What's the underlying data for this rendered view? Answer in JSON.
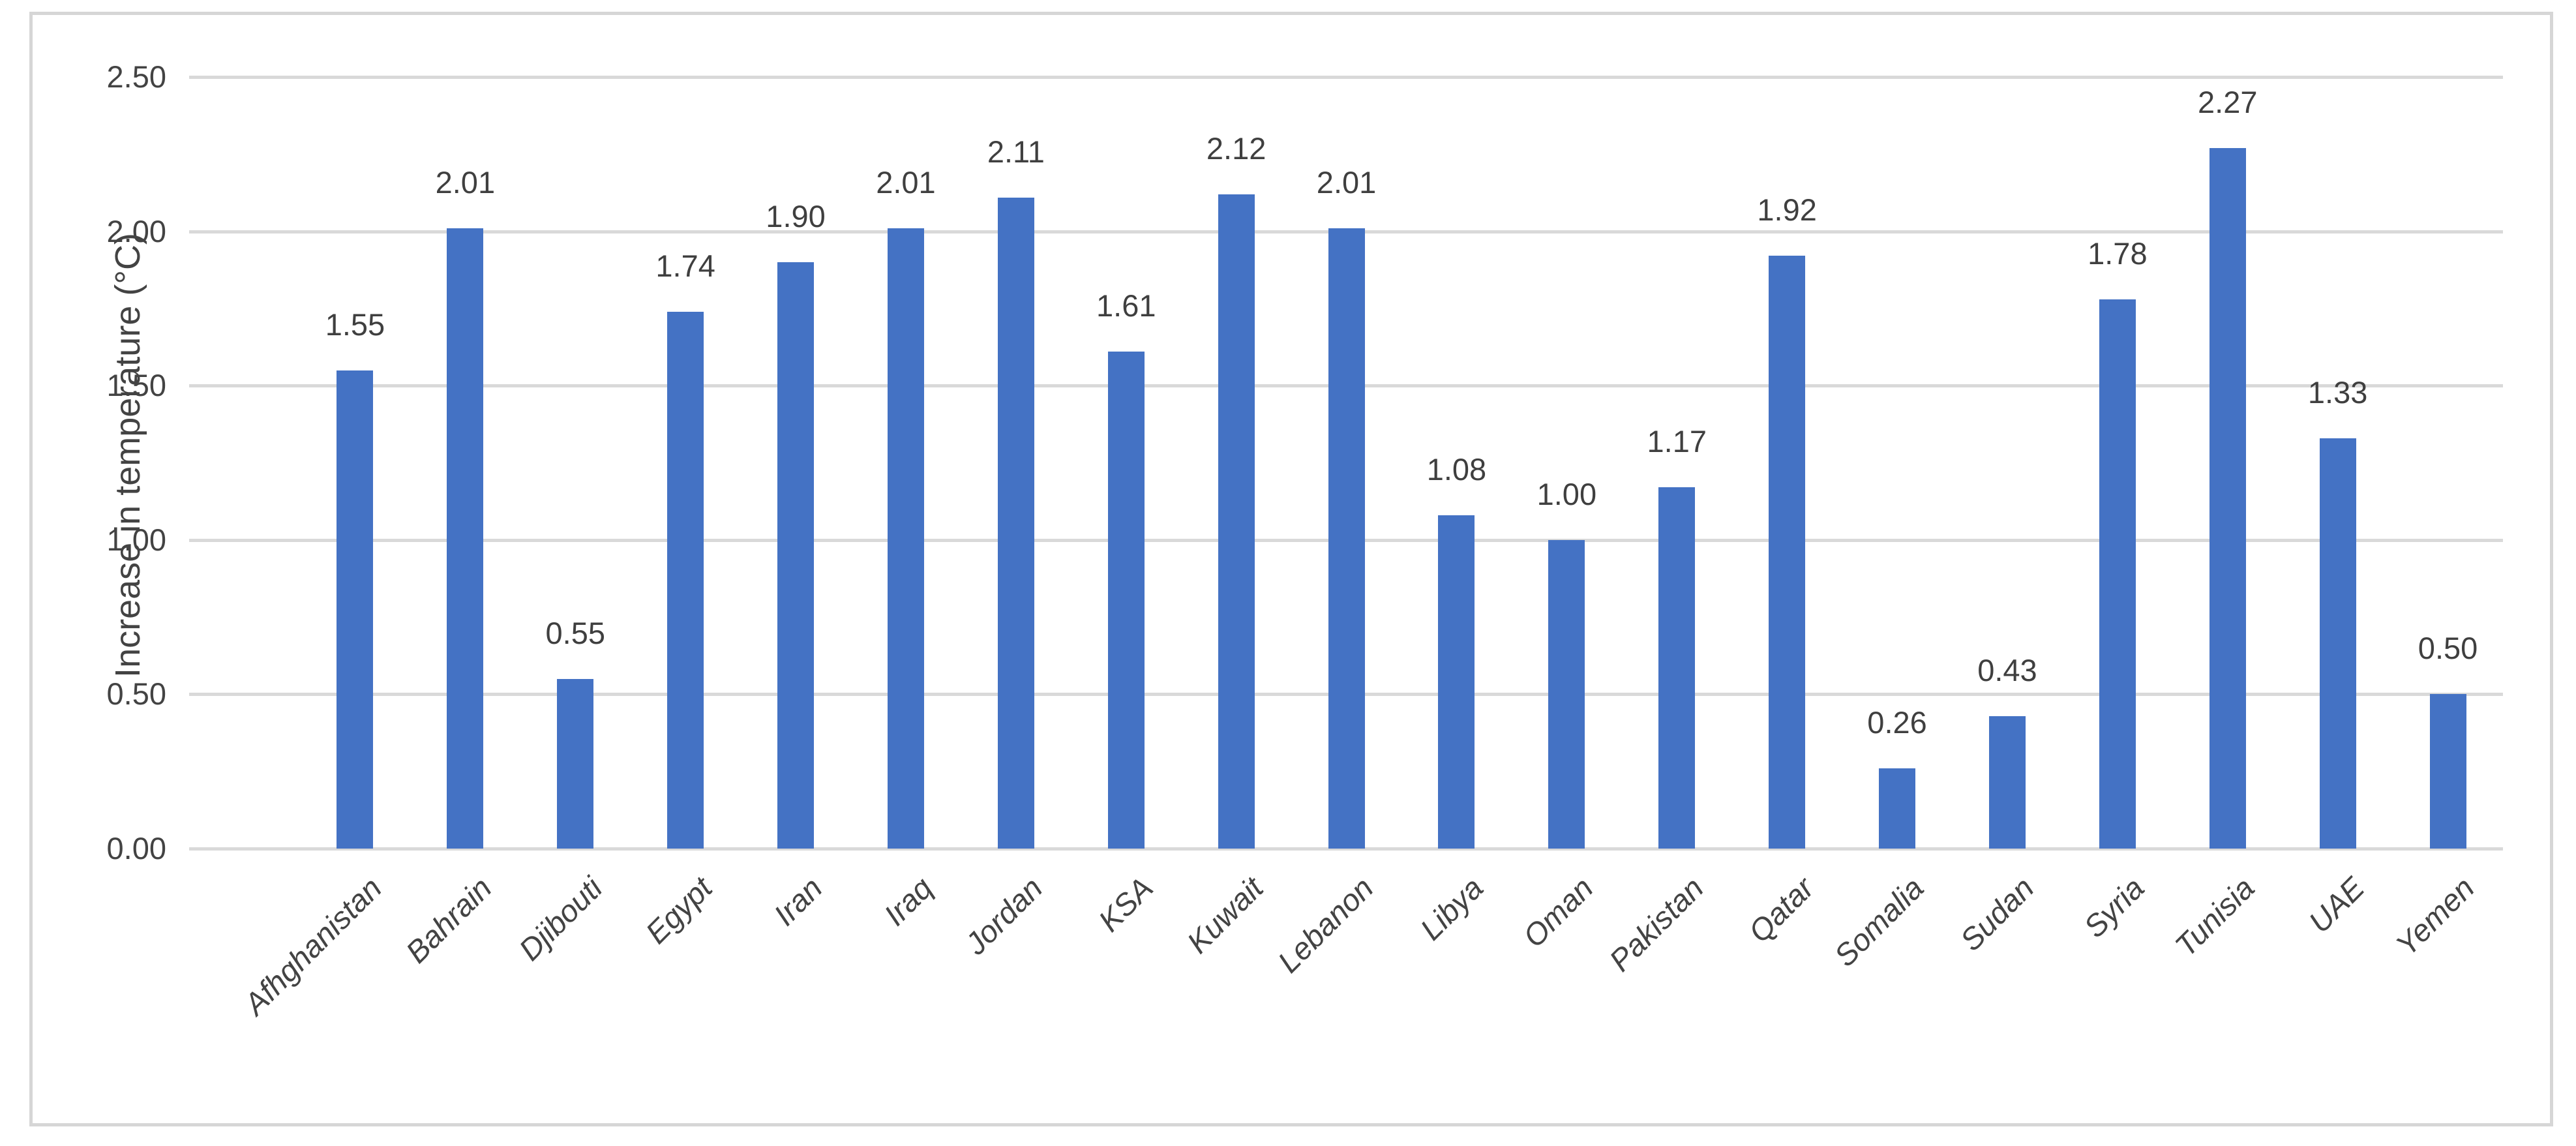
{
  "chart_data": {
    "type": "bar",
    "title": "",
    "ylabel": "Increase in temperature (°C)",
    "xlabel": "",
    "ylim": [
      0,
      2.5
    ],
    "ytick_interval": 0.5,
    "yticks": [
      "2.50",
      "2.00",
      "1.50",
      "1.00",
      "0.50",
      "0.00"
    ],
    "grid": "horizontal",
    "legend": "none",
    "categories": [
      "Afhghanistan",
      "Bahrain",
      "Djibouti",
      "Egypt",
      "Iran",
      "Iraq",
      "Jordan",
      "KSA",
      "Kuwait",
      "Lebanon",
      "Libya",
      "Oman",
      "Pakistan",
      "Qatar",
      "Somalia",
      "Sudan",
      "Syria",
      "Tunisia",
      "UAE",
      "Yemen"
    ],
    "values": [
      1.55,
      2.01,
      0.55,
      1.74,
      1.9,
      2.01,
      2.11,
      1.61,
      2.12,
      2.01,
      1.08,
      1.0,
      1.17,
      1.92,
      0.26,
      0.43,
      1.78,
      2.27,
      1.33,
      0.5
    ],
    "data_labels": [
      "1.55",
      "2.01",
      "0.55",
      "1.74",
      "1.90",
      "2.01",
      "2.11",
      "1.61",
      "2.12",
      "2.01",
      "1.08",
      "1.00",
      "1.17",
      "1.92",
      "0.26",
      "0.43",
      "1.78",
      "2.27",
      "1.33",
      "0.50"
    ],
    "colors": {
      "bar": "#4472c4",
      "gridline": "#d9d9d9",
      "text": "#434343",
      "frame_border": "#d6d6d6",
      "background": "#ffffff"
    }
  }
}
